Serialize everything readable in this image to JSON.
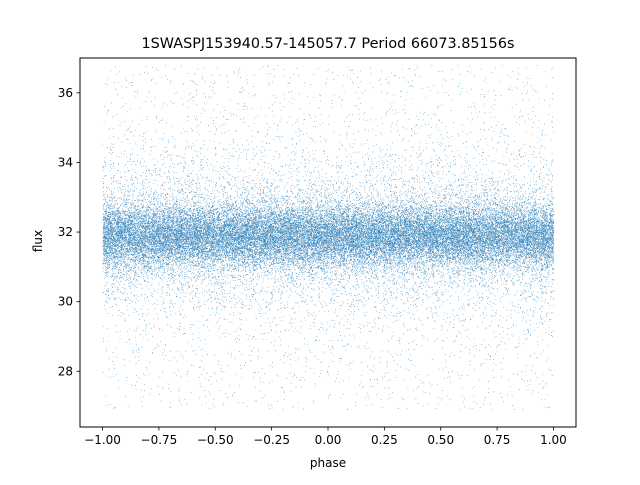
{
  "chart_data": {
    "type": "scatter",
    "title": "1SWASPJ153940.57-145057.7 Period 66073.85156s",
    "xlabel": "phase",
    "ylabel": "flux",
    "xlim": [
      -1.1,
      1.1
    ],
    "ylim": [
      26.4,
      37.0
    ],
    "xticks": [
      -1.0,
      -0.75,
      -0.5,
      -0.25,
      0.0,
      0.25,
      0.5,
      0.75,
      1.0
    ],
    "xtick_labels": [
      "−1.00",
      "−0.75",
      "−0.50",
      "−0.25",
      "0.00",
      "0.25",
      "0.50",
      "0.75",
      "1.00"
    ],
    "yticks": [
      28,
      30,
      32,
      34,
      36
    ],
    "ytick_labels": [
      "28",
      "30",
      "32",
      "34",
      "36"
    ],
    "grid": false,
    "series": [
      {
        "color": "#1f77b4",
        "marker": "point",
        "phase_range": [
          -1.0,
          1.0
        ],
        "flux_center": 31.9,
        "flux_core_band": [
          31.0,
          32.8
        ],
        "flux_extent": [
          26.9,
          36.8
        ]
      }
    ]
  }
}
